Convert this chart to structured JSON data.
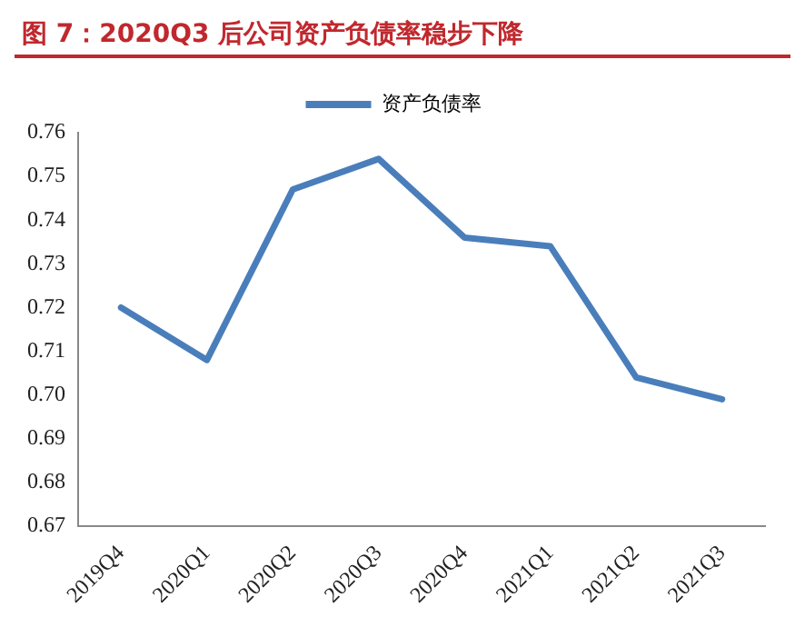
{
  "chart_data": {
    "type": "line",
    "title": "图 7：2020Q3 后公司资产负债率稳步下降",
    "categories": [
      "2019Q4",
      "2020Q1",
      "2020Q2",
      "2020Q3",
      "2020Q4",
      "2021Q1",
      "2021Q2",
      "2021Q3"
    ],
    "series": [
      {
        "name": "资产负债率",
        "color": "#4a7ebb",
        "values": [
          0.72,
          0.708,
          0.747,
          0.754,
          0.736,
          0.734,
          0.704,
          0.699
        ]
      }
    ],
    "ylim": [
      0.67,
      0.76
    ],
    "yticks": [
      0.67,
      0.68,
      0.69,
      {
        "value": 0.7,
        "label": "0.70"
      },
      0.71,
      0.72,
      0.73,
      0.74,
      0.75,
      0.76
    ],
    "legend": "top",
    "grid": false,
    "marker": "none",
    "line_style": "solid"
  }
}
